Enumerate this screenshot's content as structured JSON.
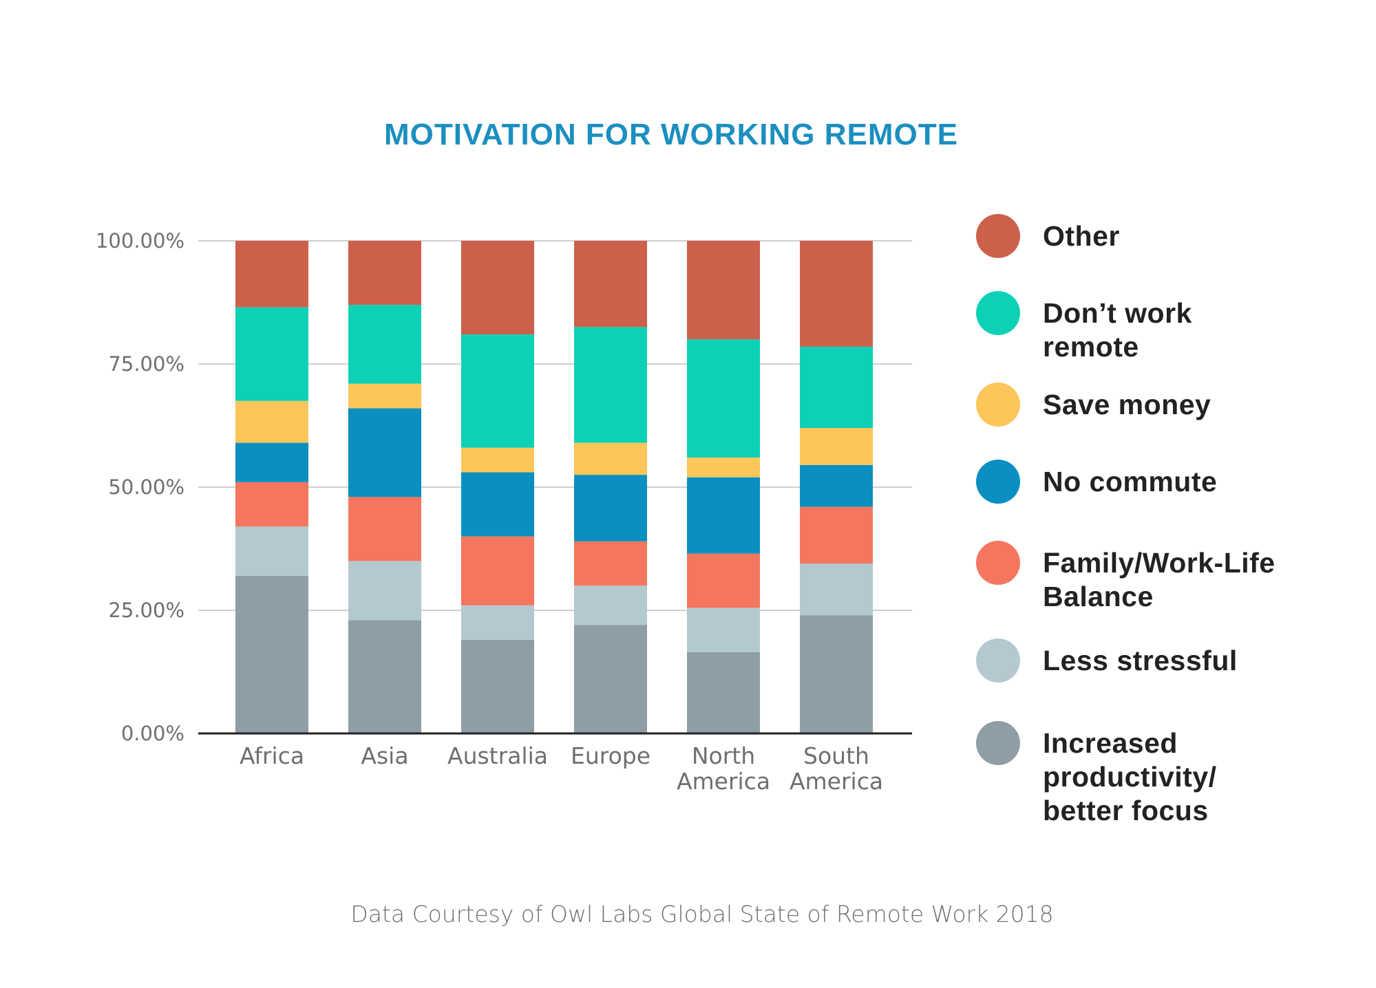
{
  "chart_data": {
    "type": "bar",
    "stacked": true,
    "title": "MOTIVATION FOR WORKING REMOTE",
    "source": "Data Courtesy of Owl Labs Global State of Remote Work 2018",
    "categories": [
      [
        "Africa"
      ],
      [
        "Asia"
      ],
      [
        "Australia"
      ],
      [
        "Europe"
      ],
      [
        "North",
        "America"
      ],
      [
        "South",
        "America"
      ]
    ],
    "ylim": [
      0,
      100
    ],
    "yticks": [
      {
        "value": 0,
        "label": "0.00%"
      },
      {
        "value": 25,
        "label": "25.00%"
      },
      {
        "value": 50,
        "label": "50.00%"
      },
      {
        "value": 75,
        "label": "75.00%"
      },
      {
        "value": 100,
        "label": "100.00%"
      }
    ],
    "grid": true,
    "legend_position": "right",
    "series": [
      {
        "name": [
          "Increased",
          "productivity/",
          "better focus"
        ],
        "color": "#8e9ea4",
        "values": [
          32,
          23,
          19,
          22,
          16.5,
          24
        ]
      },
      {
        "name": [
          "Less stressful"
        ],
        "color": "#b3c9cf",
        "values": [
          10,
          12,
          7,
          8,
          9,
          10.5
        ]
      },
      {
        "name": [
          "Family/Work-Life",
          "Balance"
        ],
        "color": "#f4765e",
        "values": [
          9,
          13,
          14,
          9,
          11,
          11.5
        ]
      },
      {
        "name": [
          "No commute"
        ],
        "color": "#0a8fc0",
        "values": [
          8,
          18,
          13,
          13.5,
          15.5,
          8.5
        ]
      },
      {
        "name": [
          "Save money"
        ],
        "color": "#fcc65a",
        "values": [
          8.5,
          5,
          5,
          6.5,
          4,
          7.5
        ]
      },
      {
        "name": [
          "Don’t work",
          "remote"
        ],
        "color": "#0dd1b6",
        "values": [
          19,
          16,
          23,
          23.5,
          24,
          16.5
        ]
      },
      {
        "name": [
          "Other"
        ],
        "color": "#cd604b",
        "values": [
          13.5,
          13,
          19,
          17.5,
          20,
          21.5
        ]
      }
    ]
  }
}
